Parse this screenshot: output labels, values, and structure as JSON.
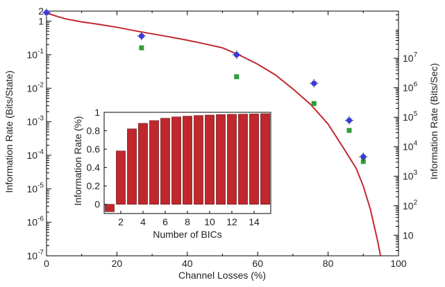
{
  "chart_data": [
    {
      "type": "line",
      "xlabel": "Channel Losses (%)",
      "ylabel": "Information Rate (Bits/State)",
      "ylabel_right": "Information Rate (Bits/Sec)",
      "xlim": [
        0,
        100
      ],
      "ylim": [
        1e-07,
        2
      ],
      "y_scale": "log",
      "y2lim": [
        2,
        400000000
      ],
      "y2_scale": "log",
      "x_ticks": [
        "0",
        "20",
        "40",
        "60",
        "80",
        "100"
      ],
      "y_ticks": [
        {
          "base": "10",
          "exp": "-7",
          "value": 1e-07
        },
        {
          "base": "10",
          "exp": "-6",
          "value": 1e-06
        },
        {
          "base": "10",
          "exp": "-5",
          "value": 1e-05
        },
        {
          "base": "10",
          "exp": "-4",
          "value": 0.0001
        },
        {
          "base": "10",
          "exp": "-3",
          "value": 0.001
        },
        {
          "base": "10",
          "exp": "-2",
          "value": 0.01
        },
        {
          "base": "10",
          "exp": "-1",
          "value": 0.1
        },
        {
          "base": "1",
          "exp": "",
          "value": 1
        },
        {
          "base": "2",
          "exp": "",
          "value": 2
        }
      ],
      "y2_ticks": [
        {
          "base": "10",
          "exp": "",
          "value": 10
        },
        {
          "base": "10",
          "exp": "2",
          "value": 100
        },
        {
          "base": "10",
          "exp": "3",
          "value": 1000
        },
        {
          "base": "10",
          "exp": "4",
          "value": 10000
        },
        {
          "base": "10",
          "exp": "5",
          "value": 100000
        },
        {
          "base": "10",
          "exp": "6",
          "value": 1000000
        },
        {
          "base": "10",
          "exp": "7",
          "value": 10000000
        }
      ],
      "series": [
        {
          "style": "curve",
          "color": "#c0282d",
          "x": [
            0,
            5,
            10,
            15,
            20,
            25,
            30,
            35,
            40,
            45,
            50,
            55,
            60,
            65,
            70,
            75,
            80,
            85,
            88,
            90,
            92,
            94,
            95,
            96
          ],
          "y": [
            1.75,
            1.2,
            0.95,
            0.8,
            0.66,
            0.52,
            0.42,
            0.34,
            0.27,
            0.21,
            0.16,
            0.095,
            0.052,
            0.025,
            0.0095,
            0.0033,
            0.00085,
            0.00013,
            4e-05,
            1.2e-05,
            2.5e-06,
            3e-07,
            9e-08,
            1.5e-08
          ]
        },
        {
          "style": "points-errorbar",
          "color": "#3a3ae0",
          "x": [
            0,
            27,
            54,
            76,
            86,
            90
          ],
          "y": [
            1.8,
            0.36,
            0.1,
            0.014,
            0.0011,
            9e-05
          ]
        },
        {
          "style": "squares",
          "color": "#2e9e3a",
          "x": [
            27,
            54,
            76,
            86,
            90
          ],
          "y": [
            0.16,
            0.022,
            0.0035,
            0.00055,
            6.5e-05
          ]
        }
      ]
    },
    {
      "type": "bar",
      "xlabel": "Number of BICs",
      "ylabel": "Information Rate (%)",
      "ylim": [
        -0.1,
        1
      ],
      "x_ticks": [
        "2",
        "4",
        "6",
        "8",
        "10",
        "12",
        "14"
      ],
      "y_ticks": [
        "0",
        "0.2",
        "0.4",
        "0.6",
        "0.8",
        "1"
      ],
      "color": "#c0282d",
      "categories": [
        1,
        2,
        3,
        4,
        5,
        6,
        7,
        8,
        9,
        10,
        11,
        12,
        13,
        14,
        15
      ],
      "values": [
        -0.08,
        0.58,
        0.82,
        0.88,
        0.91,
        0.935,
        0.95,
        0.958,
        0.965,
        0.97,
        0.975,
        0.978,
        0.98,
        0.982,
        0.985
      ]
    }
  ]
}
